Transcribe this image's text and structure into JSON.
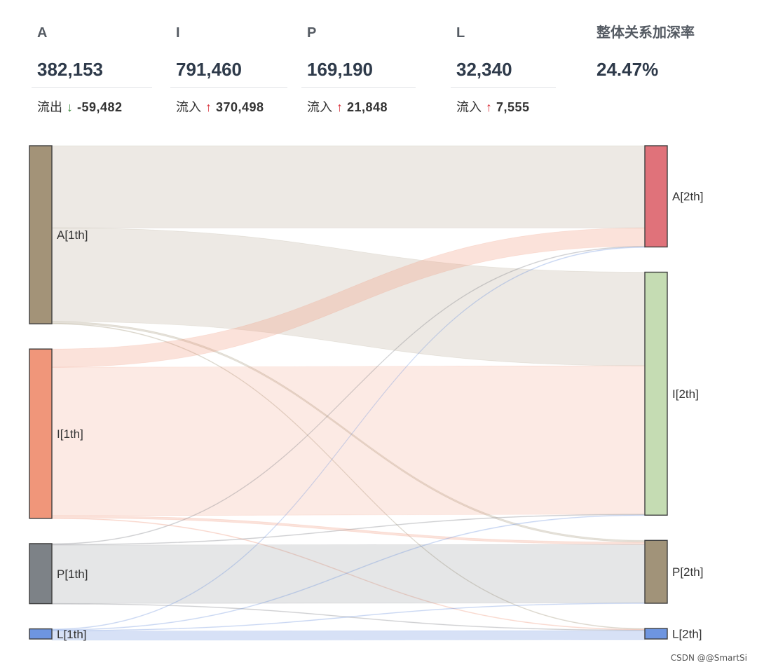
{
  "kpis": [
    {
      "label": "A",
      "value": "382,153",
      "change_label": "流出",
      "direction": "down",
      "delta": "-59,482"
    },
    {
      "label": "I",
      "value": "791,460",
      "change_label": "流入",
      "direction": "up",
      "delta": "370,498"
    },
    {
      "label": "P",
      "value": "169,190",
      "change_label": "流入",
      "direction": "up",
      "delta": "21,848"
    },
    {
      "label": "L",
      "value": "32,340",
      "change_label": "流入",
      "direction": "up",
      "delta": "7,555"
    },
    {
      "label": "整体关系加深率",
      "value": "24.47%"
    }
  ],
  "colors": {
    "up": "#d9313b",
    "down": "#3d8b3d"
  },
  "watermark": "CSDN @@SmartSi",
  "chart_data": {
    "type": "sankey",
    "nodes": [
      {
        "id": "A1",
        "label": "A[1th]",
        "stage": 1,
        "color": "#a39378"
      },
      {
        "id": "I1",
        "label": "I[1th]",
        "stage": 1,
        "color": "#f0967a"
      },
      {
        "id": "P1",
        "label": "P[1th]",
        "stage": 1,
        "color": "#7d8287"
      },
      {
        "id": "L1",
        "label": "L[1th]",
        "stage": 1,
        "color": "#6e95e0"
      },
      {
        "id": "A2",
        "label": "A[2th]",
        "stage": 2,
        "color": "#e0727a"
      },
      {
        "id": "I2",
        "label": "I[2th]",
        "stage": 2,
        "color": "#c5dcb3"
      },
      {
        "id": "P2",
        "label": "P[2th]",
        "stage": 2,
        "color": "#a19379"
      },
      {
        "id": "L2",
        "label": "L[2th]",
        "stage": 2,
        "color": "#6e95e0"
      }
    ],
    "links": [
      {
        "source": "A1",
        "target": "A2",
        "value": 180000
      },
      {
        "source": "A1",
        "target": "I2",
        "value": 205000
      },
      {
        "source": "A1",
        "target": "P2",
        "value": 4000
      },
      {
        "source": "A1",
        "target": "L2",
        "value": 1000
      },
      {
        "source": "I1",
        "target": "A2",
        "value": 40000
      },
      {
        "source": "I1",
        "target": "I2",
        "value": 325000
      },
      {
        "source": "I1",
        "target": "P2",
        "value": 5000
      },
      {
        "source": "I1",
        "target": "L2",
        "value": 1000
      },
      {
        "source": "P1",
        "target": "A2",
        "value": 1000
      },
      {
        "source": "P1",
        "target": "I2",
        "value": 1500
      },
      {
        "source": "P1",
        "target": "P2",
        "value": 128000
      },
      {
        "source": "P1",
        "target": "L2",
        "value": 1000
      },
      {
        "source": "L1",
        "target": "A2",
        "value": 700
      },
      {
        "source": "L1",
        "target": "I2",
        "value": 700
      },
      {
        "source": "L1",
        "target": "P2",
        "value": 700
      },
      {
        "source": "L1",
        "target": "L2",
        "value": 20000
      }
    ]
  }
}
